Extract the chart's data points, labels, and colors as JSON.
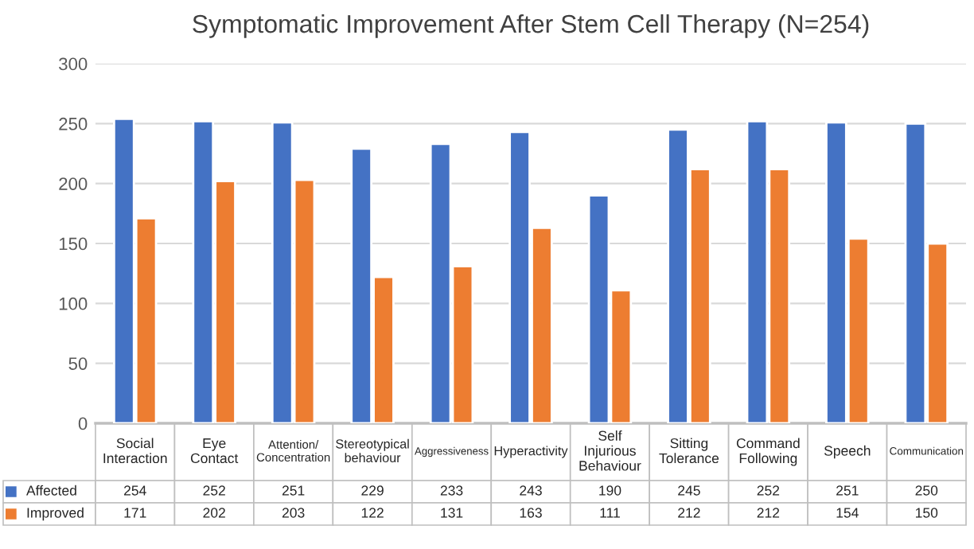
{
  "chart_data": {
    "type": "bar",
    "title": "Symptomatic Improvement After Stem Cell Therapy (N=254)",
    "categories": [
      "Social Interaction",
      "Eye Contact",
      "Attention/ Concentration",
      "Stereotypical behaviour",
      "Aggressiveness",
      "Hyperactivity",
      "Self Injurious Behaviour",
      "Sitting Tolerance",
      "Command Following",
      "Speech",
      "Communication"
    ],
    "series": [
      {
        "name": "Affected",
        "color": "#4472c4",
        "values": [
          254,
          252,
          251,
          229,
          233,
          243,
          190,
          245,
          252,
          251,
          250
        ]
      },
      {
        "name": "Improved",
        "color": "#ed7d31",
        "values": [
          171,
          202,
          203,
          122,
          131,
          163,
          111,
          212,
          212,
          154,
          150
        ]
      }
    ],
    "ylim": [
      0,
      300
    ],
    "yticks": [
      0,
      50,
      100,
      150,
      200,
      250,
      300
    ],
    "grid": "y",
    "data_labels": true,
    "legend": "bottom"
  }
}
